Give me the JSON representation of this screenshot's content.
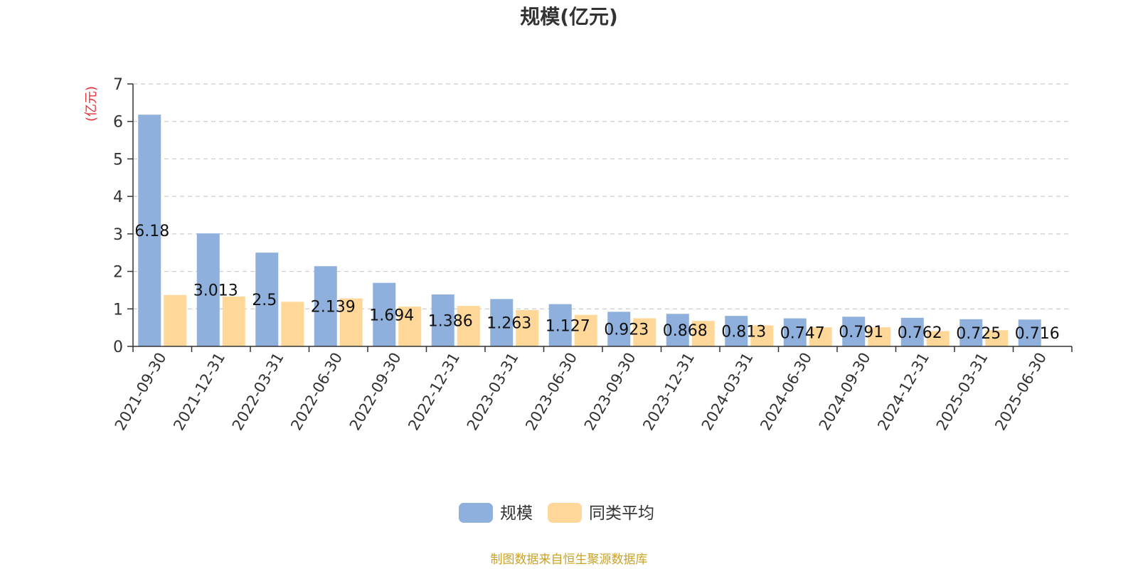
{
  "colors": {
    "series_primary": "#8fb0dd",
    "series_secondary": "#ffd899",
    "axis": "#333333",
    "grid": "#cccccc",
    "unit": "#e8303a",
    "source": "#c9a227"
  },
  "source_note": "制图数据来自恒生聚源数据库",
  "chart_data": {
    "type": "bar",
    "title": "规模(亿元)",
    "ylabel": "(亿元)",
    "xlabel": "",
    "ylim": [
      0,
      7
    ],
    "yticks": [
      0,
      1,
      2,
      3,
      4,
      5,
      6,
      7
    ],
    "grid": true,
    "legend_position": "bottom",
    "categories": [
      "2021-09-30",
      "2021-12-31",
      "2022-03-31",
      "2022-06-30",
      "2022-09-30",
      "2022-12-31",
      "2023-03-31",
      "2023-06-30",
      "2023-09-30",
      "2023-12-31",
      "2024-03-31",
      "2024-06-30",
      "2024-09-30",
      "2024-12-31",
      "2025-03-31",
      "2025-06-30"
    ],
    "series": [
      {
        "name": "规模",
        "values": [
          6.18,
          3.013,
          2.5,
          2.139,
          1.694,
          1.386,
          1.263,
          1.127,
          0.923,
          0.868,
          0.813,
          0.747,
          0.791,
          0.762,
          0.725,
          0.716
        ],
        "labels": [
          "6.18",
          "3.013",
          "2.5",
          "2.139",
          "1.694",
          "1.386",
          "1.263",
          "1.127",
          "0.923",
          "0.868",
          "0.813",
          "0.747",
          "0.791",
          "0.762",
          "0.725",
          "0.716"
        ]
      },
      {
        "name": "同类平均",
        "values": [
          1.37,
          1.33,
          1.19,
          1.28,
          1.06,
          1.08,
          0.97,
          0.84,
          0.75,
          0.68,
          0.56,
          0.51,
          0.51,
          0.41,
          0.43,
          null
        ]
      }
    ]
  }
}
